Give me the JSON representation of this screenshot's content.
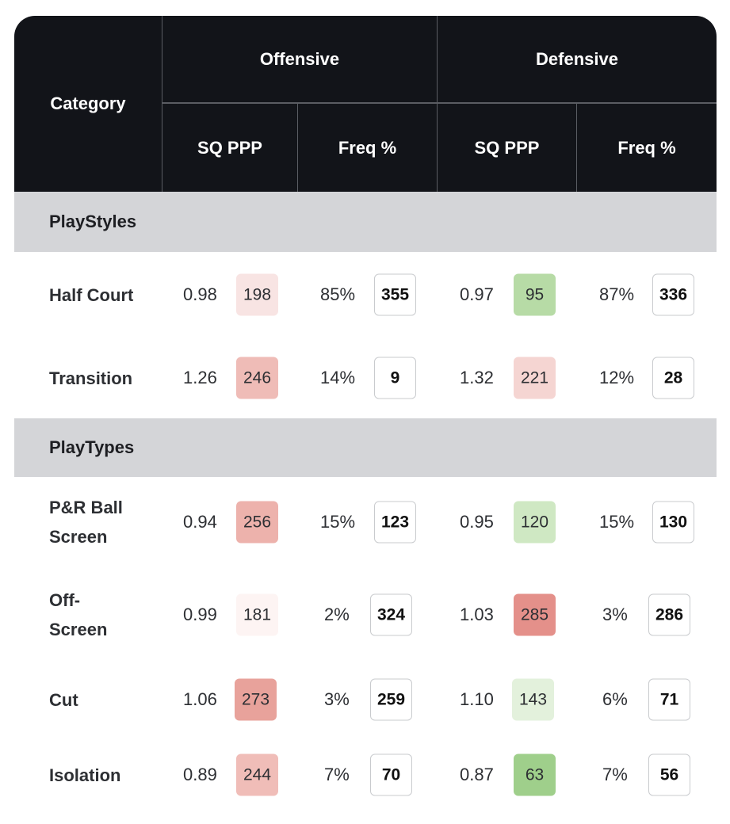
{
  "header": {
    "category_label": "Category",
    "offensive_label": "Offensive",
    "defensive_label": "Defensive",
    "off_sq_label": "SQ PPP",
    "off_freq_label": "Freq %",
    "def_sq_label": "SQ PPP",
    "def_freq_label": "Freq %"
  },
  "sections": [
    {
      "title": "PlayStyles",
      "rows": [
        {
          "category": "Half Court",
          "off_ppp": "0.98",
          "off_ppp_rank": "198",
          "off_ppp_color": "#f8e4e3",
          "off_freq": "85%",
          "off_freq_rank": "355",
          "def_ppp": "0.97",
          "def_ppp_rank": "95",
          "def_ppp_color": "#b7dba6",
          "def_freq": "87%",
          "def_freq_rank": "336"
        },
        {
          "category": "Transition",
          "off_ppp": "1.26",
          "off_ppp_rank": "246",
          "off_ppp_color": "#efbcb7",
          "off_freq": "14%",
          "off_freq_rank": "9",
          "def_ppp": "1.32",
          "def_ppp_rank": "221",
          "def_ppp_color": "#f5d5d2",
          "def_freq": "12%",
          "def_freq_rank": "28"
        }
      ]
    },
    {
      "title": "PlayTypes",
      "rows": [
        {
          "category": "P&R Ball Screen",
          "off_ppp": "0.94",
          "off_ppp_rank": "256",
          "off_ppp_color": "#edb2ac",
          "off_freq": "15%",
          "off_freq_rank": "123",
          "def_ppp": "0.95",
          "def_ppp_rank": "120",
          "def_ppp_color": "#cfe8c3",
          "def_freq": "15%",
          "def_freq_rank": "130"
        },
        {
          "category": "Off-Screen",
          "off_ppp": "0.99",
          "off_ppp_rank": "181",
          "off_ppp_color": "#fdf4f3",
          "off_freq": "2%",
          "off_freq_rank": "324",
          "def_ppp": "1.03",
          "def_ppp_rank": "285",
          "def_ppp_color": "#e4908a",
          "def_freq": "3%",
          "def_freq_rank": "286"
        },
        {
          "category": "Cut",
          "off_ppp": "1.06",
          "off_ppp_rank": "273",
          "off_ppp_color": "#e8a29b",
          "off_freq": "3%",
          "off_freq_rank": "259",
          "def_ppp": "1.10",
          "def_ppp_rank": "143",
          "def_ppp_color": "#e3f1dc",
          "def_freq": "6%",
          "def_freq_rank": "71"
        },
        {
          "category": "Isolation",
          "off_ppp": "0.89",
          "off_ppp_rank": "244",
          "off_ppp_color": "#f0bdb8",
          "off_freq": "7%",
          "off_freq_rank": "70",
          "def_ppp": "0.87",
          "def_ppp_rank": "63",
          "def_ppp_color": "#9fcf8b",
          "def_freq": "7%",
          "def_freq_rank": "56"
        }
      ]
    }
  ]
}
